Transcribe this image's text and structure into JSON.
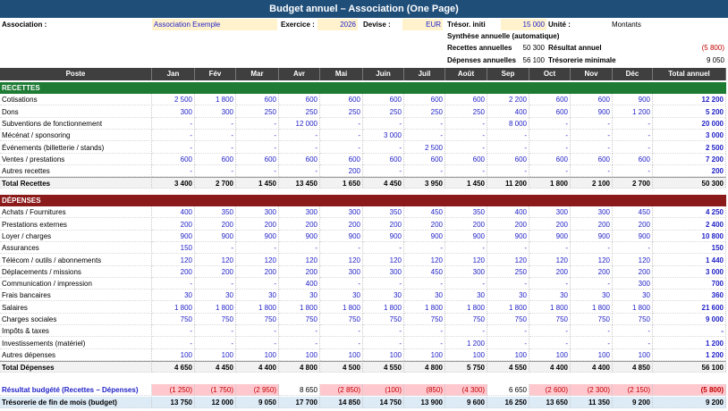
{
  "header": {
    "title": "Budget annuel – Association (One Page)"
  },
  "meta": {
    "association_label": "Association :",
    "association": "Association Exemple",
    "exercice_label": "Exercice :",
    "exercice": "2026",
    "devise_label": "Devise :",
    "devise": "EUR",
    "tresor_label": "Trésor. initi",
    "tresor": "15 000",
    "unite_label": "Unité :",
    "unite": "Montants"
  },
  "summary": {
    "title": "Synthèse annuelle (automatique)",
    "recettes_label": "Recettes annuelles",
    "recettes": "50 300",
    "depenses_label": "Dépenses annuelles",
    "depenses": "56 100",
    "resultat_label": "Résultat annuel",
    "resultat": "(5 800)",
    "tresorerie_label": "Trésorerie minimale",
    "tresorerie": "9 050"
  },
  "table": {
    "columns": [
      "Poste",
      "Jan",
      "Fév",
      "Mar",
      "Avr",
      "Mai",
      "Juin",
      "Juil",
      "Août",
      "Sep",
      "Oct",
      "Nov",
      "Déc",
      "Total annuel"
    ],
    "sections": [
      {
        "title": "RECETTES",
        "rows": [
          {
            "label": "Cotisations",
            "cells": [
              "2 500",
              "1 800",
              "600",
              "600",
              "600",
              "600",
              "600",
              "600",
              "2 200",
              "600",
              "600",
              "900",
              "12 200"
            ]
          },
          {
            "label": "Dons",
            "cells": [
              "300",
              "300",
              "250",
              "250",
              "250",
              "250",
              "250",
              "250",
              "400",
              "600",
              "900",
              "1 200",
              "5 200"
            ]
          },
          {
            "label": "Subventions de fonctionnement",
            "cells": [
              "-",
              "-",
              "-",
              "12 000",
              "-",
              "-",
              "-",
              "-",
              "8 000",
              "-",
              "-",
              "-",
              "20 000"
            ]
          },
          {
            "label": "Mécénat / sponsoring",
            "cells": [
              "-",
              "-",
              "-",
              "-",
              "-",
              "3 000",
              "-",
              "-",
              "-",
              "-",
              "-",
              "-",
              "3 000"
            ]
          },
          {
            "label": "Événements (billetterie / stands)",
            "cells": [
              "-",
              "-",
              "-",
              "-",
              "-",
              "-",
              "2 500",
              "-",
              "-",
              "-",
              "-",
              "-",
              "2 500"
            ]
          },
          {
            "label": "Ventes / prestations",
            "cells": [
              "600",
              "600",
              "600",
              "600",
              "600",
              "600",
              "600",
              "600",
              "600",
              "600",
              "600",
              "600",
              "7 200"
            ]
          },
          {
            "label": "Autres recettes",
            "cells": [
              "-",
              "-",
              "-",
              "-",
              "200",
              "-",
              "-",
              "-",
              "-",
              "-",
              "-",
              "-",
              "200"
            ]
          }
        ],
        "total": {
          "label": "Total Recettes",
          "cells": [
            "3 400",
            "2 700",
            "1 450",
            "13 450",
            "1 650",
            "4 450",
            "3 950",
            "1 450",
            "11 200",
            "1 800",
            "2 100",
            "2 700",
            "50 300"
          ]
        }
      },
      {
        "title": "DÉPENSES",
        "rows": [
          {
            "label": "Achats / Fournitures",
            "cells": [
              "400",
              "350",
              "300",
              "300",
              "300",
              "350",
              "450",
              "350",
              "400",
              "300",
              "300",
              "450",
              "4 250"
            ]
          },
          {
            "label": "Prestations externes",
            "cells": [
              "200",
              "200",
              "200",
              "200",
              "200",
              "200",
              "200",
              "200",
              "200",
              "200",
              "200",
              "200",
              "2 400"
            ]
          },
          {
            "label": "Loyer / charges",
            "cells": [
              "900",
              "900",
              "900",
              "900",
              "900",
              "900",
              "900",
              "900",
              "900",
              "900",
              "900",
              "900",
              "10 800"
            ]
          },
          {
            "label": "Assurances",
            "cells": [
              "150",
              "-",
              "-",
              "-",
              "-",
              "-",
              "-",
              "-",
              "-",
              "-",
              "-",
              "-",
              "150"
            ]
          },
          {
            "label": "Télécom / outils / abonnements",
            "cells": [
              "120",
              "120",
              "120",
              "120",
              "120",
              "120",
              "120",
              "120",
              "120",
              "120",
              "120",
              "120",
              "1 440"
            ]
          },
          {
            "label": "Déplacements / missions",
            "cells": [
              "200",
              "200",
              "200",
              "200",
              "300",
              "300",
              "450",
              "300",
              "250",
              "200",
              "200",
              "200",
              "3 000"
            ]
          },
          {
            "label": "Communication / impression",
            "cells": [
              "-",
              "-",
              "-",
              "400",
              "-",
              "-",
              "-",
              "-",
              "-",
              "-",
              "-",
              "300",
              "700"
            ]
          },
          {
            "label": "Frais bancaires",
            "cells": [
              "30",
              "30",
              "30",
              "30",
              "30",
              "30",
              "30",
              "30",
              "30",
              "30",
              "30",
              "30",
              "360"
            ]
          },
          {
            "label": "Salaires",
            "cells": [
              "1 800",
              "1 800",
              "1 800",
              "1 800",
              "1 800",
              "1 800",
              "1 800",
              "1 800",
              "1 800",
              "1 800",
              "1 800",
              "1 800",
              "21 600"
            ]
          },
          {
            "label": "Charges sociales",
            "cells": [
              "750",
              "750",
              "750",
              "750",
              "750",
              "750",
              "750",
              "750",
              "750",
              "750",
              "750",
              "750",
              "9 000"
            ]
          },
          {
            "label": "Impôts & taxes",
            "cells": [
              "-",
              "-",
              "-",
              "-",
              "-",
              "-",
              "-",
              "-",
              "-",
              "-",
              "-",
              "-",
              "-"
            ]
          },
          {
            "label": "Investissements (matériel)",
            "cells": [
              "-",
              "-",
              "-",
              "-",
              "-",
              "-",
              "-",
              "1 200",
              "-",
              "-",
              "-",
              "-",
              "1 200"
            ]
          },
          {
            "label": "Autres dépenses",
            "cells": [
              "100",
              "100",
              "100",
              "100",
              "100",
              "100",
              "100",
              "100",
              "100",
              "100",
              "100",
              "100",
              "1 200"
            ]
          }
        ],
        "total": {
          "label": "Total Dépenses",
          "cells": [
            "4 650",
            "4 450",
            "4 400",
            "4 800",
            "4 500",
            "4 550",
            "4 800",
            "5 750",
            "4 550",
            "4 400",
            "4 400",
            "4 850",
            "56 100"
          ]
        }
      }
    ],
    "result": {
      "label": "Résultat budgété (Recettes – Dépenses)",
      "cells": [
        "(1 250)",
        "(1 750)",
        "(2 950)",
        "8 650",
        "(2 850)",
        "(100)",
        "(850)",
        "(4 300)",
        "6 650",
        "(2 600)",
        "(2 300)",
        "(2 150)",
        "(5 800)"
      ]
    },
    "treasury": {
      "label": "Trésorerie de fin de mois (budget)",
      "cells": [
        "13 750",
        "12 000",
        "9 050",
        "17 700",
        "14 850",
        "14 750",
        "13 900",
        "9 600",
        "16 250",
        "13 650",
        "11 350",
        "9 200",
        "9 200"
      ]
    }
  }
}
